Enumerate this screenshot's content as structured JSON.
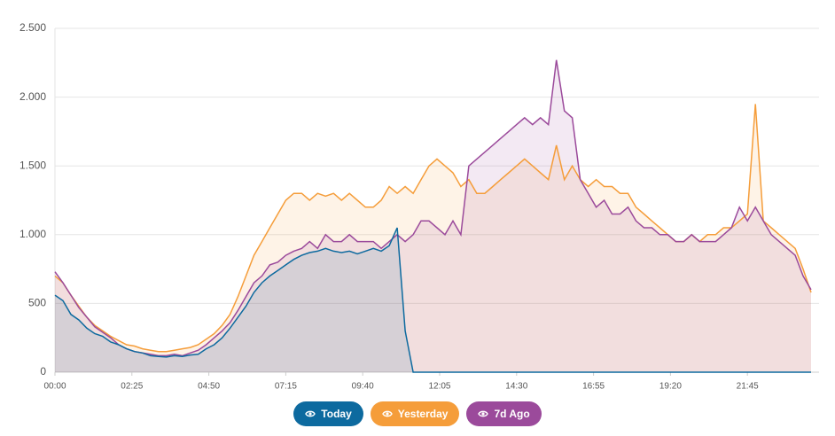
{
  "chart_data": {
    "type": "area",
    "x": [
      0,
      15,
      30,
      45,
      60,
      75,
      90,
      105,
      120,
      135,
      150,
      165,
      180,
      195,
      210,
      225,
      240,
      255,
      270,
      285,
      300,
      315,
      330,
      345,
      360,
      375,
      390,
      405,
      420,
      435,
      450,
      465,
      480,
      495,
      510,
      525,
      540,
      555,
      570,
      585,
      600,
      615,
      630,
      645,
      660,
      675,
      690,
      705,
      720,
      735,
      750,
      765,
      780,
      795,
      810,
      825,
      840,
      855,
      870,
      885,
      900,
      915,
      930,
      945,
      960,
      975,
      990,
      1005,
      1020,
      1035,
      1050,
      1065,
      1080,
      1095,
      1110,
      1125,
      1140,
      1155,
      1170,
      1185,
      1200,
      1215,
      1230,
      1245,
      1260,
      1275,
      1290,
      1305,
      1320,
      1335,
      1350,
      1365,
      1380,
      1395,
      1410,
      1425
    ],
    "xlim": [
      0,
      1440
    ],
    "xticks": [
      {
        "value": 0,
        "label": "00:00"
      },
      {
        "value": 145,
        "label": "02:25"
      },
      {
        "value": 290,
        "label": "04:50"
      },
      {
        "value": 435,
        "label": "07:15"
      },
      {
        "value": 580,
        "label": "09:40"
      },
      {
        "value": 725,
        "label": "12:05"
      },
      {
        "value": 870,
        "label": "14:30"
      },
      {
        "value": 1015,
        "label": "16:55"
      },
      {
        "value": 1160,
        "label": "19:20"
      },
      {
        "value": 1305,
        "label": "21:45"
      }
    ],
    "ylim": [
      0,
      2500
    ],
    "yticks": [
      0,
      500,
      {
        "value": 1000,
        "label": "1.000"
      },
      {
        "value": 1500,
        "label": "1.500"
      },
      {
        "value": 2000,
        "label": "2.000"
      },
      {
        "value": 2500,
        "label": "2.500"
      }
    ],
    "grid": true,
    "legend": "bottom",
    "series": [
      {
        "name": "Yesterday",
        "color": "#f59d3a",
        "values": [
          700,
          650,
          560,
          480,
          400,
          340,
          300,
          260,
          230,
          200,
          190,
          170,
          160,
          150,
          150,
          160,
          170,
          180,
          200,
          240,
          280,
          340,
          420,
          550,
          700,
          850,
          950,
          1050,
          1150,
          1250,
          1300,
          1300,
          1250,
          1300,
          1280,
          1300,
          1250,
          1300,
          1250,
          1200,
          1200,
          1250,
          1350,
          1300,
          1350,
          1300,
          1400,
          1500,
          1550,
          1500,
          1450,
          1350,
          1400,
          1300,
          1300,
          1350,
          1400,
          1450,
          1500,
          1550,
          1500,
          1450,
          1400,
          1650,
          1400,
          1500,
          1400,
          1350,
          1400,
          1350,
          1350,
          1300,
          1300,
          1200,
          1150,
          1100,
          1050,
          1000,
          950,
          950,
          1000,
          950,
          1000,
          1000,
          1050,
          1050,
          1100,
          1150,
          1950,
          1100,
          1050,
          1000,
          950,
          900,
          750,
          580
        ]
      },
      {
        "name": "7d Ago",
        "color": "#9b4a9b",
        "values": [
          730,
          650,
          560,
          470,
          400,
          330,
          290,
          250,
          200,
          170,
          150,
          140,
          130,
          120,
          120,
          130,
          120,
          140,
          160,
          200,
          250,
          300,
          360,
          450,
          550,
          650,
          700,
          780,
          800,
          850,
          880,
          900,
          950,
          900,
          1000,
          950,
          950,
          1000,
          950,
          950,
          950,
          900,
          950,
          1000,
          950,
          1000,
          1100,
          1100,
          1050,
          1000,
          1100,
          1000,
          1500,
          1550,
          1600,
          1650,
          1700,
          1750,
          1800,
          1850,
          1800,
          1850,
          1800,
          2270,
          1900,
          1850,
          1400,
          1300,
          1200,
          1250,
          1150,
          1150,
          1200,
          1100,
          1050,
          1050,
          1000,
          1000,
          950,
          950,
          1000,
          950,
          950,
          950,
          1000,
          1050,
          1200,
          1100,
          1200,
          1100,
          1000,
          950,
          900,
          850,
          700,
          600
        ]
      },
      {
        "name": "Today",
        "color": "#0d6a9f",
        "values": [
          560,
          520,
          420,
          380,
          320,
          280,
          260,
          220,
          200,
          170,
          150,
          140,
          120,
          115,
          110,
          120,
          115,
          125,
          130,
          170,
          200,
          250,
          320,
          400,
          480,
          580,
          650,
          700,
          740,
          780,
          820,
          850,
          870,
          880,
          900,
          880,
          870,
          880,
          860,
          880,
          900,
          880,
          920,
          1050,
          300,
          0,
          0,
          0,
          0,
          0,
          0,
          0,
          0,
          0,
          0,
          0,
          0,
          0,
          0,
          0,
          0,
          0,
          0,
          0,
          0,
          0,
          0,
          0,
          0,
          0,
          0,
          0,
          0,
          0,
          0,
          0,
          0,
          0,
          0,
          0,
          0,
          0,
          0,
          0,
          0,
          0,
          0,
          0,
          0,
          0,
          0,
          0,
          0,
          0,
          0,
          0
        ]
      }
    ],
    "legend_order": [
      2,
      0,
      1
    ]
  }
}
